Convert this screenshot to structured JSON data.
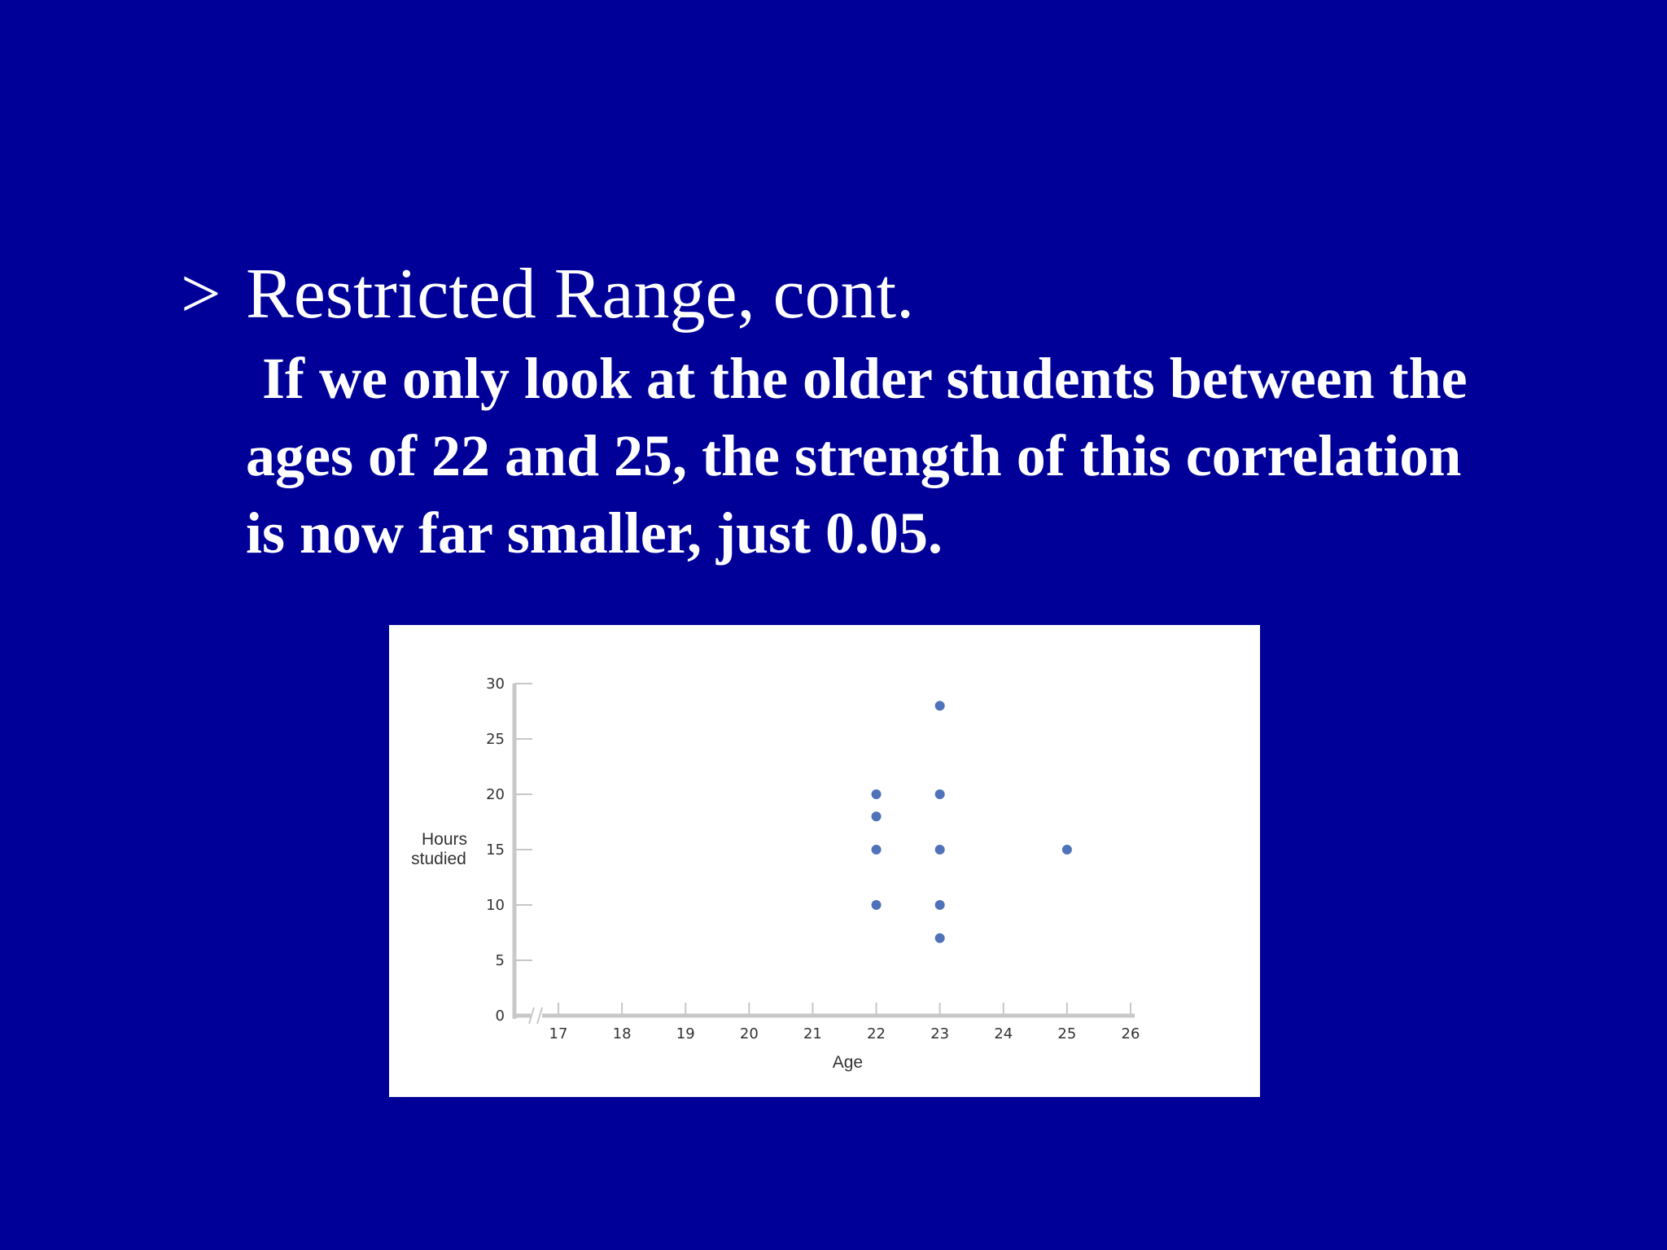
{
  "slide": {
    "bullet_marker": ">",
    "heading": "Restricted Range, cont.",
    "body_lines": [
      "If we only look at the older students between the",
      "ages of 22 and 25, the strength of this correlation",
      "is now far smaller, just 0.05."
    ]
  },
  "colors": {
    "background": "#000099",
    "text": "#ffffff",
    "point": "#4f72b8",
    "axis": "#c8c8c8"
  },
  "chart_data": {
    "type": "scatter",
    "xlabel": "Age",
    "ylabel_lines": [
      "Hours",
      "studied"
    ],
    "x_ticks": [
      "17",
      "18",
      "19",
      "20",
      "21",
      "22",
      "23",
      "24",
      "25",
      "26"
    ],
    "y_ticks": [
      "0",
      "5",
      "10",
      "15",
      "20",
      "25",
      "30"
    ],
    "xlim": [
      17,
      26
    ],
    "ylim": [
      0,
      30
    ],
    "x_axis_break": true,
    "grid": false,
    "points": [
      {
        "x": 22,
        "y": 20
      },
      {
        "x": 22,
        "y": 18
      },
      {
        "x": 22,
        "y": 15
      },
      {
        "x": 22,
        "y": 10
      },
      {
        "x": 23,
        "y": 28
      },
      {
        "x": 23,
        "y": 20
      },
      {
        "x": 23,
        "y": 15
      },
      {
        "x": 23,
        "y": 10
      },
      {
        "x": 23,
        "y": 7
      },
      {
        "x": 25,
        "y": 15
      }
    ]
  }
}
